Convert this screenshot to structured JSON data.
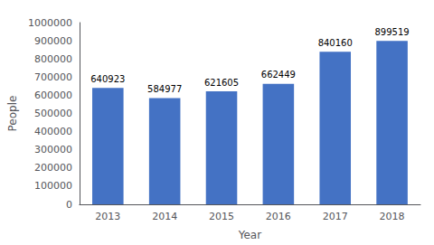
{
  "chart_data": {
    "type": "bar",
    "xlabel": "Year",
    "ylabel": "People",
    "categories": [
      "2013",
      "2014",
      "2015",
      "2016",
      "2017",
      "2018"
    ],
    "values": [
      640923,
      584977,
      621605,
      662449,
      840160,
      899519
    ],
    "color": "#4472C4",
    "ylim": [
      0,
      1000000
    ],
    "yticks": [
      0,
      100000,
      200000,
      300000,
      400000,
      500000,
      600000,
      700000,
      800000,
      900000,
      1000000
    ],
    "grid": false,
    "data_labels": true
  }
}
